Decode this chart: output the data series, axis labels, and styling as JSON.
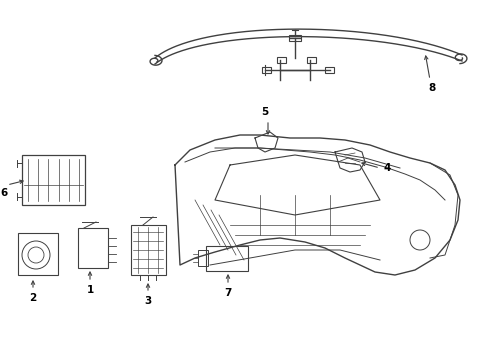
{
  "background_color": "#ffffff",
  "line_color": "#404040",
  "label_color": "#000000",
  "figsize": [
    4.89,
    3.6
  ],
  "dpi": 100
}
